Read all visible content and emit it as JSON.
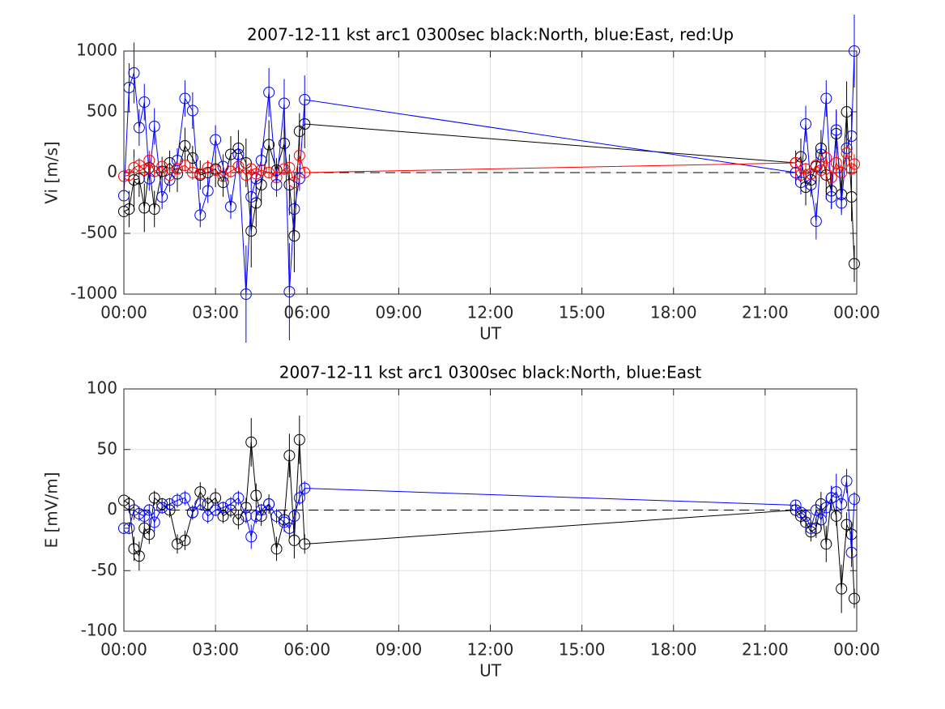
{
  "chart_data": [
    {
      "type": "line",
      "title": "2007-12-11 kst arc1 0300sec black:North, blue:East, red:Up",
      "xlabel": "UT",
      "ylabel": "Vi [m/s]",
      "x": [
        0.0,
        0.17,
        0.33,
        0.5,
        0.67,
        0.83,
        1.0,
        1.25,
        1.5,
        1.75,
        2.0,
        2.25,
        2.5,
        2.75,
        3.0,
        3.25,
        3.5,
        3.75,
        4.0,
        4.17,
        4.33,
        4.5,
        4.75,
        5.0,
        5.25,
        5.42,
        5.58,
        5.75,
        5.92,
        22.0,
        22.17,
        22.33,
        22.5,
        22.67,
        22.83,
        23.0,
        23.17,
        23.33,
        23.5,
        23.67,
        23.83,
        23.92
      ],
      "xlim": [
        0,
        24
      ],
      "xticks": [
        {
          "value": 0,
          "label": "00:00"
        },
        {
          "value": 3,
          "label": "03:00"
        },
        {
          "value": 6,
          "label": "06:00"
        },
        {
          "value": 9,
          "label": "09:00"
        },
        {
          "value": 12,
          "label": "12:00"
        },
        {
          "value": 15,
          "label": "15:00"
        },
        {
          "value": 18,
          "label": "18:00"
        },
        {
          "value": 21,
          "label": "21:00"
        },
        {
          "value": 24,
          "label": "00:00"
        }
      ],
      "ylim": [
        -1000,
        1000
      ],
      "yticks": [
        -1000,
        -500,
        0,
        500,
        1000
      ],
      "grid": true,
      "hline": 0,
      "marker": "circle",
      "series": [
        {
          "color": "#000000",
          "values": [
            -320,
            -300,
            -60,
            -50,
            -290,
            40,
            -300,
            10,
            80,
            -10,
            220,
            120,
            -20,
            0,
            30,
            -80,
            150,
            200,
            80,
            -480,
            -250,
            -100,
            230,
            20,
            240,
            -100,
            -520,
            340,
            400,
            80,
            130,
            -120,
            -60,
            50,
            200,
            -20,
            -150,
            320,
            -180,
            500,
            -200,
            -750
          ],
          "errors": [
            200,
            150,
            250,
            150,
            200,
            100,
            150,
            120,
            100,
            150,
            150,
            100,
            120,
            100,
            150,
            120,
            150,
            150,
            200,
            300,
            200,
            150,
            200,
            100,
            200,
            250,
            300,
            150,
            200,
            100,
            150,
            150,
            120,
            150,
            150,
            200,
            150,
            200,
            150,
            250,
            200,
            150
          ]
        },
        {
          "color": "#0000ff",
          "values": [
            -190,
            700,
            820,
            370,
            580,
            -50,
            380,
            -200,
            -60,
            100,
            610,
            510,
            -350,
            -150,
            270,
            50,
            -280,
            150,
            -1000,
            -200,
            -50,
            100,
            660,
            -100,
            570,
            -980,
            -300,
            -50,
            600,
            0,
            -80,
            400,
            -100,
            -400,
            150,
            610,
            -200,
            350,
            -250,
            200,
            300,
            1000
          ],
          "errors": [
            150,
            200,
            250,
            150,
            150,
            100,
            150,
            100,
            100,
            100,
            150,
            150,
            100,
            100,
            120,
            100,
            100,
            100,
            400,
            200,
            100,
            100,
            200,
            100,
            200,
            400,
            300,
            100,
            200,
            100,
            100,
            150,
            100,
            150,
            100,
            150,
            100,
            150,
            100,
            200,
            200,
            300
          ]
        },
        {
          "color": "#ff0000",
          "values": [
            -30,
            -20,
            40,
            60,
            20,
            100,
            10,
            50,
            -20,
            30,
            60,
            0,
            -10,
            40,
            20,
            -30,
            10,
            50,
            -20,
            30,
            -10,
            20,
            0,
            -40,
            30,
            40,
            -80,
            140,
            0,
            80,
            -20,
            30,
            -10,
            60,
            20,
            120,
            -40,
            80,
            0,
            160,
            30,
            70
          ],
          "errors": [
            60,
            50,
            80,
            60,
            50,
            80,
            50,
            60,
            50,
            60,
            50,
            60,
            50,
            60,
            50,
            60,
            50,
            60,
            50,
            60,
            50,
            60,
            50,
            60,
            50,
            60,
            80,
            80,
            50,
            80,
            60,
            50,
            60,
            80,
            60,
            80,
            60,
            80,
            60,
            80,
            60,
            80
          ]
        }
      ]
    },
    {
      "type": "line",
      "title": "2007-12-11 kst arc1 0300sec black:North, blue:East",
      "xlabel": "UT",
      "ylabel": "E [mV/m]",
      "x": [
        0.0,
        0.17,
        0.33,
        0.5,
        0.67,
        0.83,
        1.0,
        1.25,
        1.5,
        1.75,
        2.0,
        2.25,
        2.5,
        2.75,
        3.0,
        3.25,
        3.5,
        3.75,
        4.0,
        4.17,
        4.33,
        4.5,
        4.75,
        5.0,
        5.25,
        5.42,
        5.58,
        5.75,
        5.92,
        22.0,
        22.17,
        22.33,
        22.5,
        22.67,
        22.83,
        23.0,
        23.17,
        23.33,
        23.5,
        23.67,
        23.83,
        23.92
      ],
      "xlim": [
        0,
        24
      ],
      "xticks": [
        {
          "value": 0,
          "label": "00:00"
        },
        {
          "value": 3,
          "label": "03:00"
        },
        {
          "value": 6,
          "label": "06:00"
        },
        {
          "value": 9,
          "label": "09:00"
        },
        {
          "value": 12,
          "label": "12:00"
        },
        {
          "value": 15,
          "label": "15:00"
        },
        {
          "value": 18,
          "label": "18:00"
        },
        {
          "value": 21,
          "label": "21:00"
        },
        {
          "value": 24,
          "label": "00:00"
        }
      ],
      "ylim": [
        -100,
        100
      ],
      "yticks": [
        -100,
        -50,
        0,
        50,
        100
      ],
      "grid": true,
      "hline": 0,
      "marker": "circle",
      "series": [
        {
          "color": "#000000",
          "values": [
            8,
            5,
            -32,
            -38,
            -15,
            -20,
            10,
            5,
            0,
            -28,
            -25,
            -2,
            15,
            5,
            10,
            -5,
            0,
            -8,
            2,
            56,
            12,
            -5,
            5,
            -32,
            -8,
            45,
            -25,
            58,
            -28,
            0,
            -5,
            -10,
            -18,
            -15,
            5,
            -28,
            10,
            -5,
            -65,
            -12,
            -20,
            -73
          ],
          "errors": [
            8,
            6,
            10,
            12,
            8,
            8,
            6,
            5,
            6,
            8,
            8,
            6,
            8,
            6,
            8,
            6,
            6,
            8,
            8,
            20,
            10,
            8,
            8,
            10,
            8,
            18,
            15,
            20,
            8,
            5,
            6,
            8,
            8,
            8,
            10,
            15,
            10,
            8,
            20,
            10,
            10,
            8
          ]
        },
        {
          "color": "#0000ff",
          "values": [
            -15,
            -15,
            0,
            -3,
            -5,
            0,
            -10,
            2,
            5,
            8,
            10,
            -2,
            5,
            -5,
            0,
            2,
            5,
            10,
            -5,
            -22,
            -5,
            0,
            5,
            -5,
            -10,
            -15,
            -5,
            10,
            18,
            4,
            -2,
            -5,
            -15,
            0,
            -8,
            2,
            10,
            15,
            5,
            24,
            -35,
            9
          ],
          "errors": [
            6,
            5,
            8,
            6,
            6,
            5,
            8,
            5,
            5,
            6,
            6,
            5,
            5,
            6,
            5,
            5,
            6,
            6,
            6,
            10,
            6,
            5,
            6,
            6,
            8,
            8,
            6,
            6,
            6,
            4,
            5,
            6,
            6,
            5,
            8,
            8,
            10,
            15,
            8,
            10,
            12,
            6
          ]
        }
      ]
    }
  ]
}
